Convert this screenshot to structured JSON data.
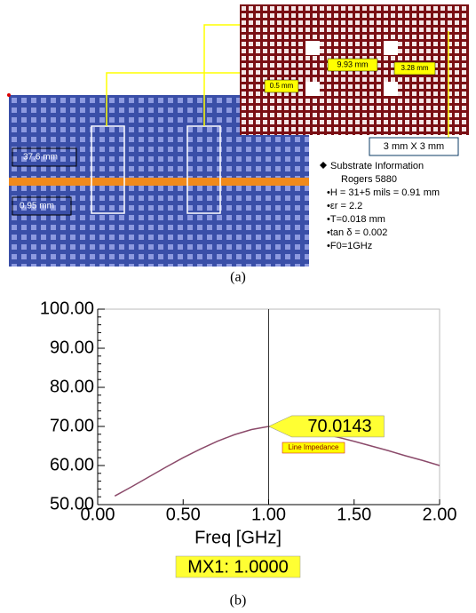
{
  "diagram": {
    "length_label": "37.6 mm",
    "width_label": "0.95 mm",
    "period_label": "9.93 mm",
    "spacing_label": "3.28 mm",
    "gap_label": "0.5 mm",
    "cell_size_label": "3 mm X 3 mm",
    "substrate": {
      "title": "Substrate Information",
      "material": "Rogers 5880",
      "properties": [
        "•H = 31+5 mils = 0.91 mm",
        "•εr = 2.2",
        "•T=0.018 mm",
        "•tan δ = 0.002",
        "•F0=1GHz"
      ]
    },
    "caption": "(a)"
  },
  "chart_data": {
    "type": "line",
    "x_label": "Freq [GHz]",
    "caption": "(b)",
    "x": [
      0.1,
      0.2,
      0.3,
      0.4,
      0.5,
      0.6,
      0.7,
      0.8,
      0.9,
      1.0,
      1.1,
      1.2,
      1.3,
      1.4,
      1.5,
      1.6,
      1.7,
      1.8,
      1.9,
      2.0
    ],
    "series": [
      {
        "name": "Line Impedance",
        "color": "#8b4a6a",
        "values": [
          52.2,
          54.6,
          57.1,
          59.6,
          62.0,
          64.2,
          66.2,
          67.9,
          69.2,
          70.0,
          69.8,
          69.2,
          68.3,
          67.3,
          66.2,
          65.0,
          63.8,
          62.5,
          61.3,
          60.0
        ]
      }
    ],
    "xlim": [
      0,
      2
    ],
    "ylim": [
      50,
      100
    ],
    "xticks": [
      {
        "value": 0,
        "label": "0.00"
      },
      {
        "value": 0.5,
        "label": "0.50"
      },
      {
        "value": 1,
        "label": "1.00"
      },
      {
        "value": 1.5,
        "label": "1.50"
      },
      {
        "value": 2,
        "label": "2.00"
      }
    ],
    "yticks": [
      {
        "value": 50,
        "label": "50.00"
      },
      {
        "value": 60,
        "label": "60.00"
      },
      {
        "value": 70,
        "label": "70.00"
      },
      {
        "value": 80,
        "label": "80.00"
      },
      {
        "value": 90,
        "label": "90.00"
      },
      {
        "value": 100,
        "label": "100.00"
      }
    ],
    "marker": {
      "x": 1,
      "x_label": "MX1: 1.0000",
      "y": 70.0143,
      "y_label": "70.0143"
    }
  }
}
